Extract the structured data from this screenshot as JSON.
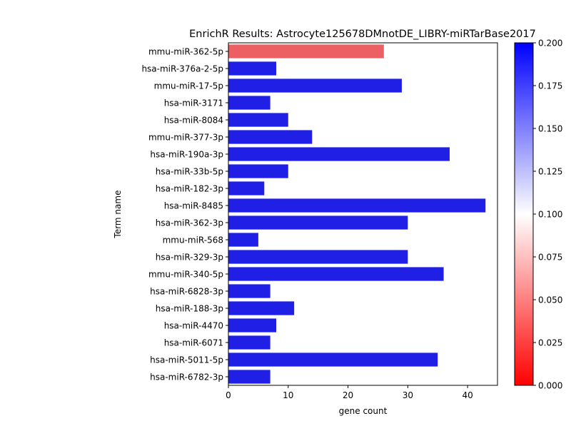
{
  "chart_data": {
    "type": "bar",
    "orientation": "horizontal",
    "title": "EnrichR Results: Astrocyte125678DMnotDE_LIBRY-miRTarBase2017",
    "xlabel": "gene count",
    "ylabel": "Term name",
    "xlim": [
      0,
      45
    ],
    "xticks": [
      0,
      10,
      20,
      30,
      40
    ],
    "categories": [
      "mmu-miR-362-5p",
      "hsa-miR-376a-2-5p",
      "mmu-miR-17-5p",
      "hsa-miR-3171",
      "hsa-miR-8084",
      "mmu-miR-377-3p",
      "hsa-miR-190a-3p",
      "hsa-miR-33b-5p",
      "hsa-miR-182-3p",
      "hsa-miR-8485",
      "hsa-miR-362-3p",
      "mmu-miR-568",
      "hsa-miR-329-3p",
      "mmu-miR-340-5p",
      "hsa-miR-6828-3p",
      "hsa-miR-188-3p",
      "hsa-miR-4470",
      "hsa-miR-6071",
      "hsa-miR-5011-5p",
      "hsa-miR-6782-3p"
    ],
    "values": [
      26,
      8,
      29,
      7,
      10,
      14,
      37,
      10,
      6,
      43,
      30,
      5,
      30,
      36,
      7,
      11,
      8,
      7,
      35,
      7
    ],
    "bar_colors": [
      "#ec5f63",
      "#1f1fe6",
      "#1f1fe6",
      "#1f1fe6",
      "#1f1fe6",
      "#1f1fe6",
      "#1f1fe6",
      "#1f1fe6",
      "#1f1fe6",
      "#1f1fe6",
      "#1f1fe6",
      "#1f1fe6",
      "#1f1fe6",
      "#1f1fe6",
      "#1f1fe6",
      "#1f1fe6",
      "#1f1fe6",
      "#1f1fe6",
      "#1f1fe6",
      "#1f1fe6"
    ],
    "colorbar": {
      "range": [
        0.0,
        0.2
      ],
      "ticks": [
        0.0,
        0.025,
        0.05,
        0.075,
        0.1,
        0.125,
        0.15,
        0.175,
        0.2
      ],
      "tick_labels": [
        "0.000",
        "0.025",
        "0.050",
        "0.075",
        "0.100",
        "0.125",
        "0.150",
        "0.175",
        "0.200"
      ],
      "color_low": "#ff0000",
      "color_mid": "#ffffff",
      "color_high": "#0000ff"
    }
  }
}
